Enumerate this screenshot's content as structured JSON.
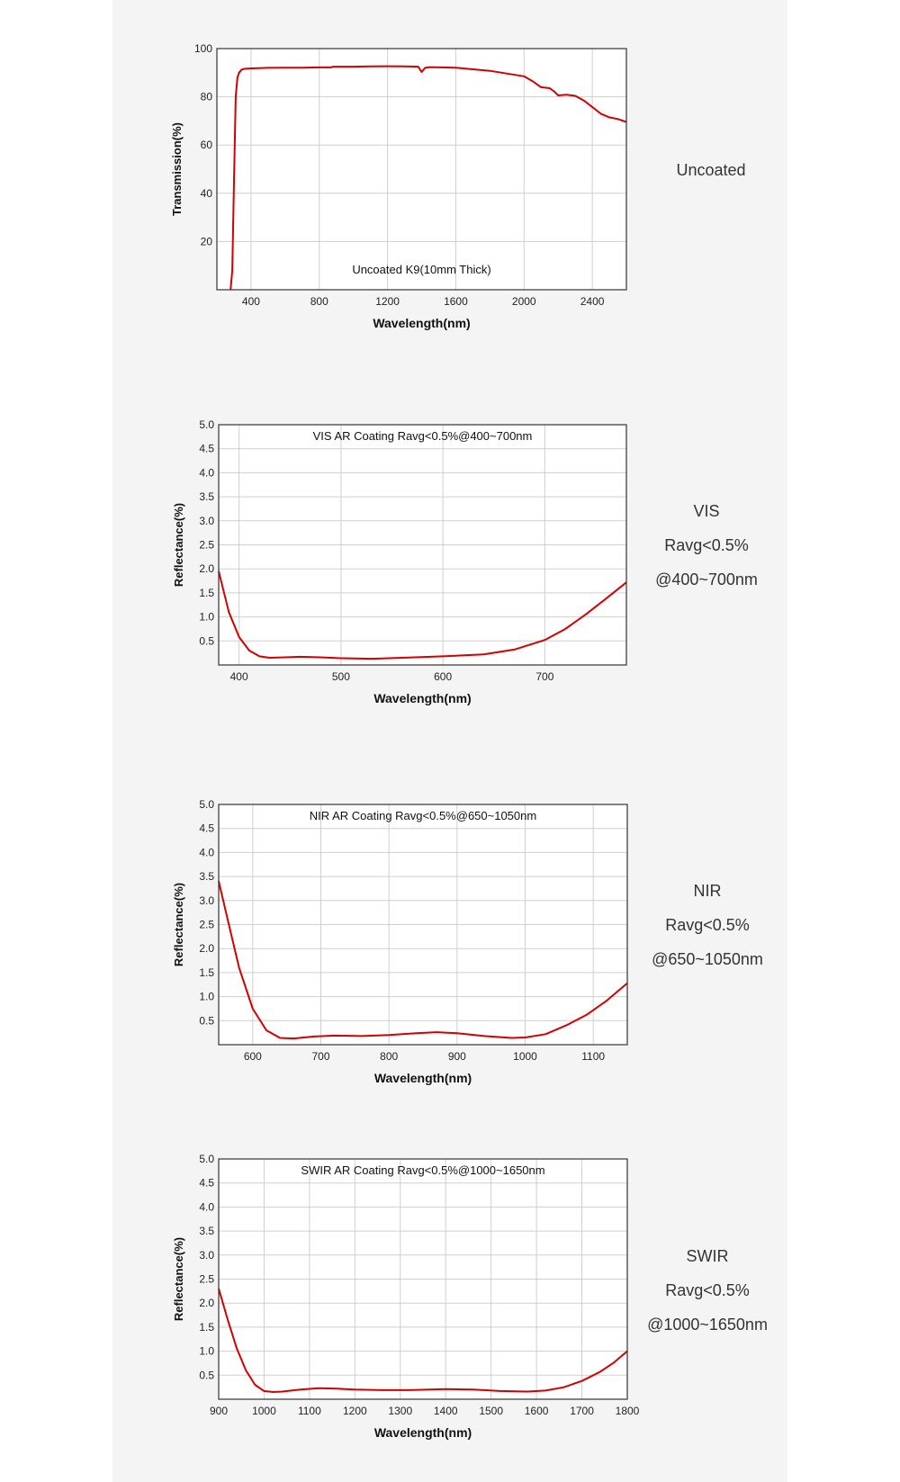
{
  "colors": {
    "curve": "#d40000",
    "grid": "#cfcfcf",
    "frame": "#333333",
    "panel": "#f4f4f4"
  },
  "chart_data": [
    {
      "type": "line",
      "title": "Uncoated K9(10mm Thick)",
      "xlabel": "Wavelength(nm)",
      "ylabel": "Transmission(%)",
      "xlim": [
        200,
        2600
      ],
      "ylim": [
        0,
        100
      ],
      "xticks": [
        "400",
        "800",
        "1200",
        "1600",
        "2000",
        "2400"
      ],
      "yticks": [
        "20",
        "40",
        "60",
        "80",
        "100"
      ],
      "side_label": [
        "Uncoated"
      ],
      "series": [
        {
          "x": [
            280,
            290,
            300,
            310,
            320,
            330,
            345,
            360,
            400,
            500,
            600,
            700,
            800,
            870,
            880,
            1000,
            1100,
            1200,
            1300,
            1380,
            1400,
            1420,
            1450,
            1600,
            1800,
            2000,
            2050,
            2100,
            2150,
            2180,
            2200,
            2250,
            2300,
            2350,
            2400,
            2450,
            2500,
            2550,
            2600
          ],
          "y": [
            0,
            8,
            45,
            80,
            88,
            90,
            91.3,
            91.6,
            91.8,
            92,
            92.1,
            92.1,
            92.2,
            92.2,
            92.5,
            92.5,
            92.6,
            92.7,
            92.6,
            92.5,
            90.3,
            92,
            92.3,
            92.1,
            90.8,
            88.5,
            86.5,
            84,
            83.6,
            82,
            80.6,
            80.9,
            80.4,
            78.5,
            75.8,
            73,
            71.5,
            70.8,
            69.6
          ]
        }
      ]
    },
    {
      "type": "line",
      "title": "VIS AR Coating Ravg<0.5%@400~700nm",
      "xlabel": "Wavelength(nm)",
      "ylabel": "Reflectance(%)",
      "xlim": [
        380,
        780
      ],
      "ylim": [
        0,
        5
      ],
      "xticks": [
        "400",
        "500",
        "600",
        "700"
      ],
      "yticks": [
        "0.5",
        "1.0",
        "1.5",
        "2.0",
        "2.5",
        "3.0",
        "3.5",
        "4.0",
        "4.5",
        "5.0"
      ],
      "side_label": [
        "VIS",
        "Ravg<0.5%",
        "@400~700nm"
      ],
      "series": [
        {
          "x": [
            380,
            390,
            400,
            410,
            420,
            430,
            445,
            460,
            480,
            500,
            530,
            560,
            600,
            640,
            670,
            700,
            720,
            740,
            760,
            780
          ],
          "y": [
            1.95,
            1.1,
            0.58,
            0.3,
            0.18,
            0.15,
            0.16,
            0.17,
            0.16,
            0.14,
            0.13,
            0.15,
            0.18,
            0.22,
            0.32,
            0.52,
            0.75,
            1.05,
            1.38,
            1.72
          ]
        }
      ]
    },
    {
      "type": "line",
      "title": "NIR AR Coating Ravg<0.5%@650~1050nm",
      "xlabel": "Wavelength(nm)",
      "ylabel": "Reflectance(%)",
      "xlim": [
        550,
        1150
      ],
      "ylim": [
        0,
        5
      ],
      "xticks": [
        "600",
        "700",
        "800",
        "900",
        "1000",
        "1100"
      ],
      "yticks": [
        "0.5",
        "1.0",
        "1.5",
        "2.0",
        "2.5",
        "3.0",
        "3.5",
        "4.0",
        "4.5",
        "5.0"
      ],
      "side_label": [
        "NIR",
        "Ravg<0.5%",
        "@650~1050nm"
      ],
      "series": [
        {
          "x": [
            550,
            565,
            580,
            600,
            620,
            640,
            660,
            690,
            720,
            760,
            800,
            840,
            870,
            900,
            940,
            980,
            1000,
            1030,
            1060,
            1090,
            1120,
            1150
          ],
          "y": [
            3.4,
            2.5,
            1.6,
            0.75,
            0.3,
            0.14,
            0.13,
            0.17,
            0.19,
            0.18,
            0.2,
            0.24,
            0.26,
            0.24,
            0.18,
            0.14,
            0.15,
            0.22,
            0.4,
            0.62,
            0.92,
            1.28
          ]
        }
      ]
    },
    {
      "type": "line",
      "title": "SWIR AR Coating Ravg<0.5%@1000~1650nm",
      "xlabel": "Wavelength(nm)",
      "ylabel": "Reflectance(%)",
      "xlim": [
        900,
        1800
      ],
      "ylim": [
        0,
        5
      ],
      "xticks": [
        "900",
        "1000",
        "1100",
        "1200",
        "1300",
        "1400",
        "1500",
        "1600",
        "1700",
        "1800"
      ],
      "yticks": [
        "0.5",
        "1.0",
        "1.5",
        "2.0",
        "2.5",
        "3.0",
        "3.5",
        "4.0",
        "4.5",
        "5.0"
      ],
      "side_label": [
        "SWIR",
        "Ravg<0.5%",
        "@1000~1650nm"
      ],
      "series": [
        {
          "x": [
            900,
            920,
            940,
            960,
            980,
            1000,
            1020,
            1040,
            1080,
            1120,
            1160,
            1200,
            1260,
            1320,
            1400,
            1460,
            1520,
            1580,
            1620,
            1660,
            1700,
            1740,
            1770,
            1800
          ],
          "y": [
            2.3,
            1.65,
            1.05,
            0.6,
            0.3,
            0.17,
            0.15,
            0.16,
            0.2,
            0.23,
            0.22,
            0.2,
            0.19,
            0.19,
            0.21,
            0.2,
            0.17,
            0.16,
            0.18,
            0.25,
            0.38,
            0.57,
            0.76,
            1.0
          ]
        }
      ]
    }
  ]
}
